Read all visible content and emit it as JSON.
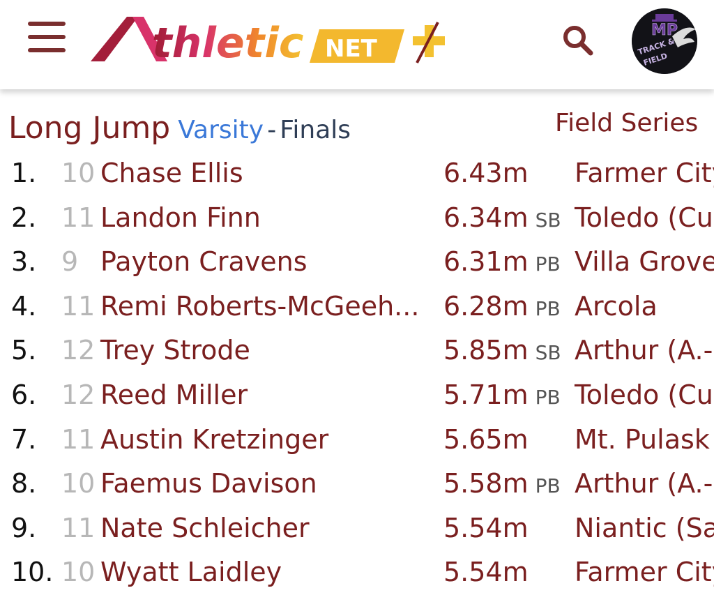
{
  "header": {
    "logo_text": "Athletic NET +",
    "avatar_text": "MP TRACK & FIELD",
    "colors": {
      "brand": "#7a1f1f",
      "logo_pink": "#d8336a",
      "logo_orange": "#f0872c",
      "logo_yellow": "#f3c130"
    },
    "icons": {
      "menu": "hamburger-menu-icon",
      "search": "search-icon"
    }
  },
  "event": {
    "name": "Long Jump",
    "division": "Varsity",
    "separator": "-",
    "round": "Finals",
    "series": "Field Series"
  },
  "results": [
    {
      "place": "1.",
      "grade": "10",
      "athlete": "Chase Ellis",
      "mark": "6.43m",
      "tag": "",
      "team": "Farmer City"
    },
    {
      "place": "2.",
      "grade": "11",
      "athlete": "Landon Finn",
      "mark": "6.34m",
      "tag": "SB",
      "team": "Toledo (Cu"
    },
    {
      "place": "3.",
      "grade": "9",
      "athlete": "Payton Cravens",
      "mark": "6.31m",
      "tag": "PB",
      "team": "Villa Grove"
    },
    {
      "place": "4.",
      "grade": "11",
      "athlete": "Remi Roberts-McGeeh...",
      "mark": "6.28m",
      "tag": "PB",
      "team": "Arcola"
    },
    {
      "place": "5.",
      "grade": "12",
      "athlete": "Trey Strode",
      "mark": "5.85m",
      "tag": "SB",
      "team": "Arthur (A.-"
    },
    {
      "place": "6.",
      "grade": "12",
      "athlete": "Reed Miller",
      "mark": "5.71m",
      "tag": "PB",
      "team": "Toledo (Cu"
    },
    {
      "place": "7.",
      "grade": "11",
      "athlete": "Austin Kretzinger",
      "mark": "5.65m",
      "tag": "",
      "team": "Mt. Pulask"
    },
    {
      "place": "8.",
      "grade": "10",
      "athlete": "Faemus Davison",
      "mark": "5.58m",
      "tag": "PB",
      "team": "Arthur (A.-"
    },
    {
      "place": "9.",
      "grade": "11",
      "athlete": "Nate Schleicher",
      "mark": "5.54m",
      "tag": "",
      "team": "Niantic (Sa"
    },
    {
      "place": "10.",
      "grade": "10",
      "athlete": "Wyatt Laidley",
      "mark": "5.54m",
      "tag": "",
      "team": "Farmer City"
    }
  ]
}
